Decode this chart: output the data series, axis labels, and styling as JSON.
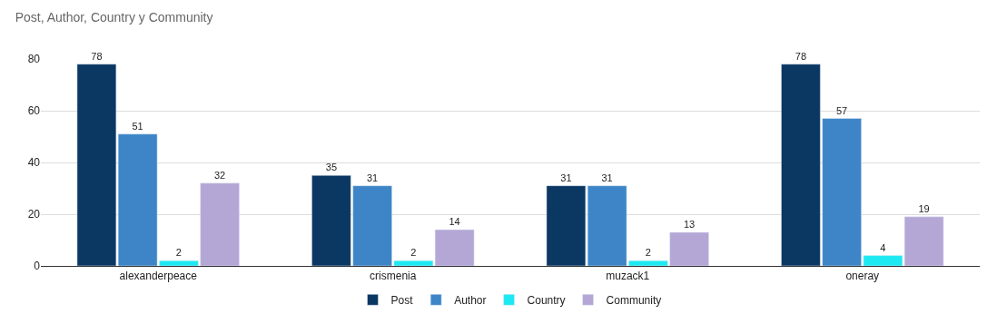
{
  "chart_data": {
    "type": "bar",
    "title": "Post, Author, Country y Community",
    "categories": [
      "alexanderpeace",
      "crismenia",
      "muzack1",
      "oneray"
    ],
    "series": [
      {
        "name": "Post",
        "color": "#0b3763",
        "values": [
          78,
          35,
          31,
          78
        ]
      },
      {
        "name": "Author",
        "color": "#3d85c6",
        "values": [
          51,
          31,
          31,
          57
        ]
      },
      {
        "name": "Country",
        "color": "#1de9f2",
        "values": [
          2,
          2,
          2,
          4
        ]
      },
      {
        "name": "Community",
        "color": "#b4a7d6",
        "values": [
          32,
          14,
          13,
          19
        ]
      }
    ],
    "ylim": [
      0,
      80
    ],
    "yticks": [
      0,
      20,
      40,
      60,
      80
    ],
    "grid": "y",
    "legend": "bottom",
    "data_labels": true
  }
}
